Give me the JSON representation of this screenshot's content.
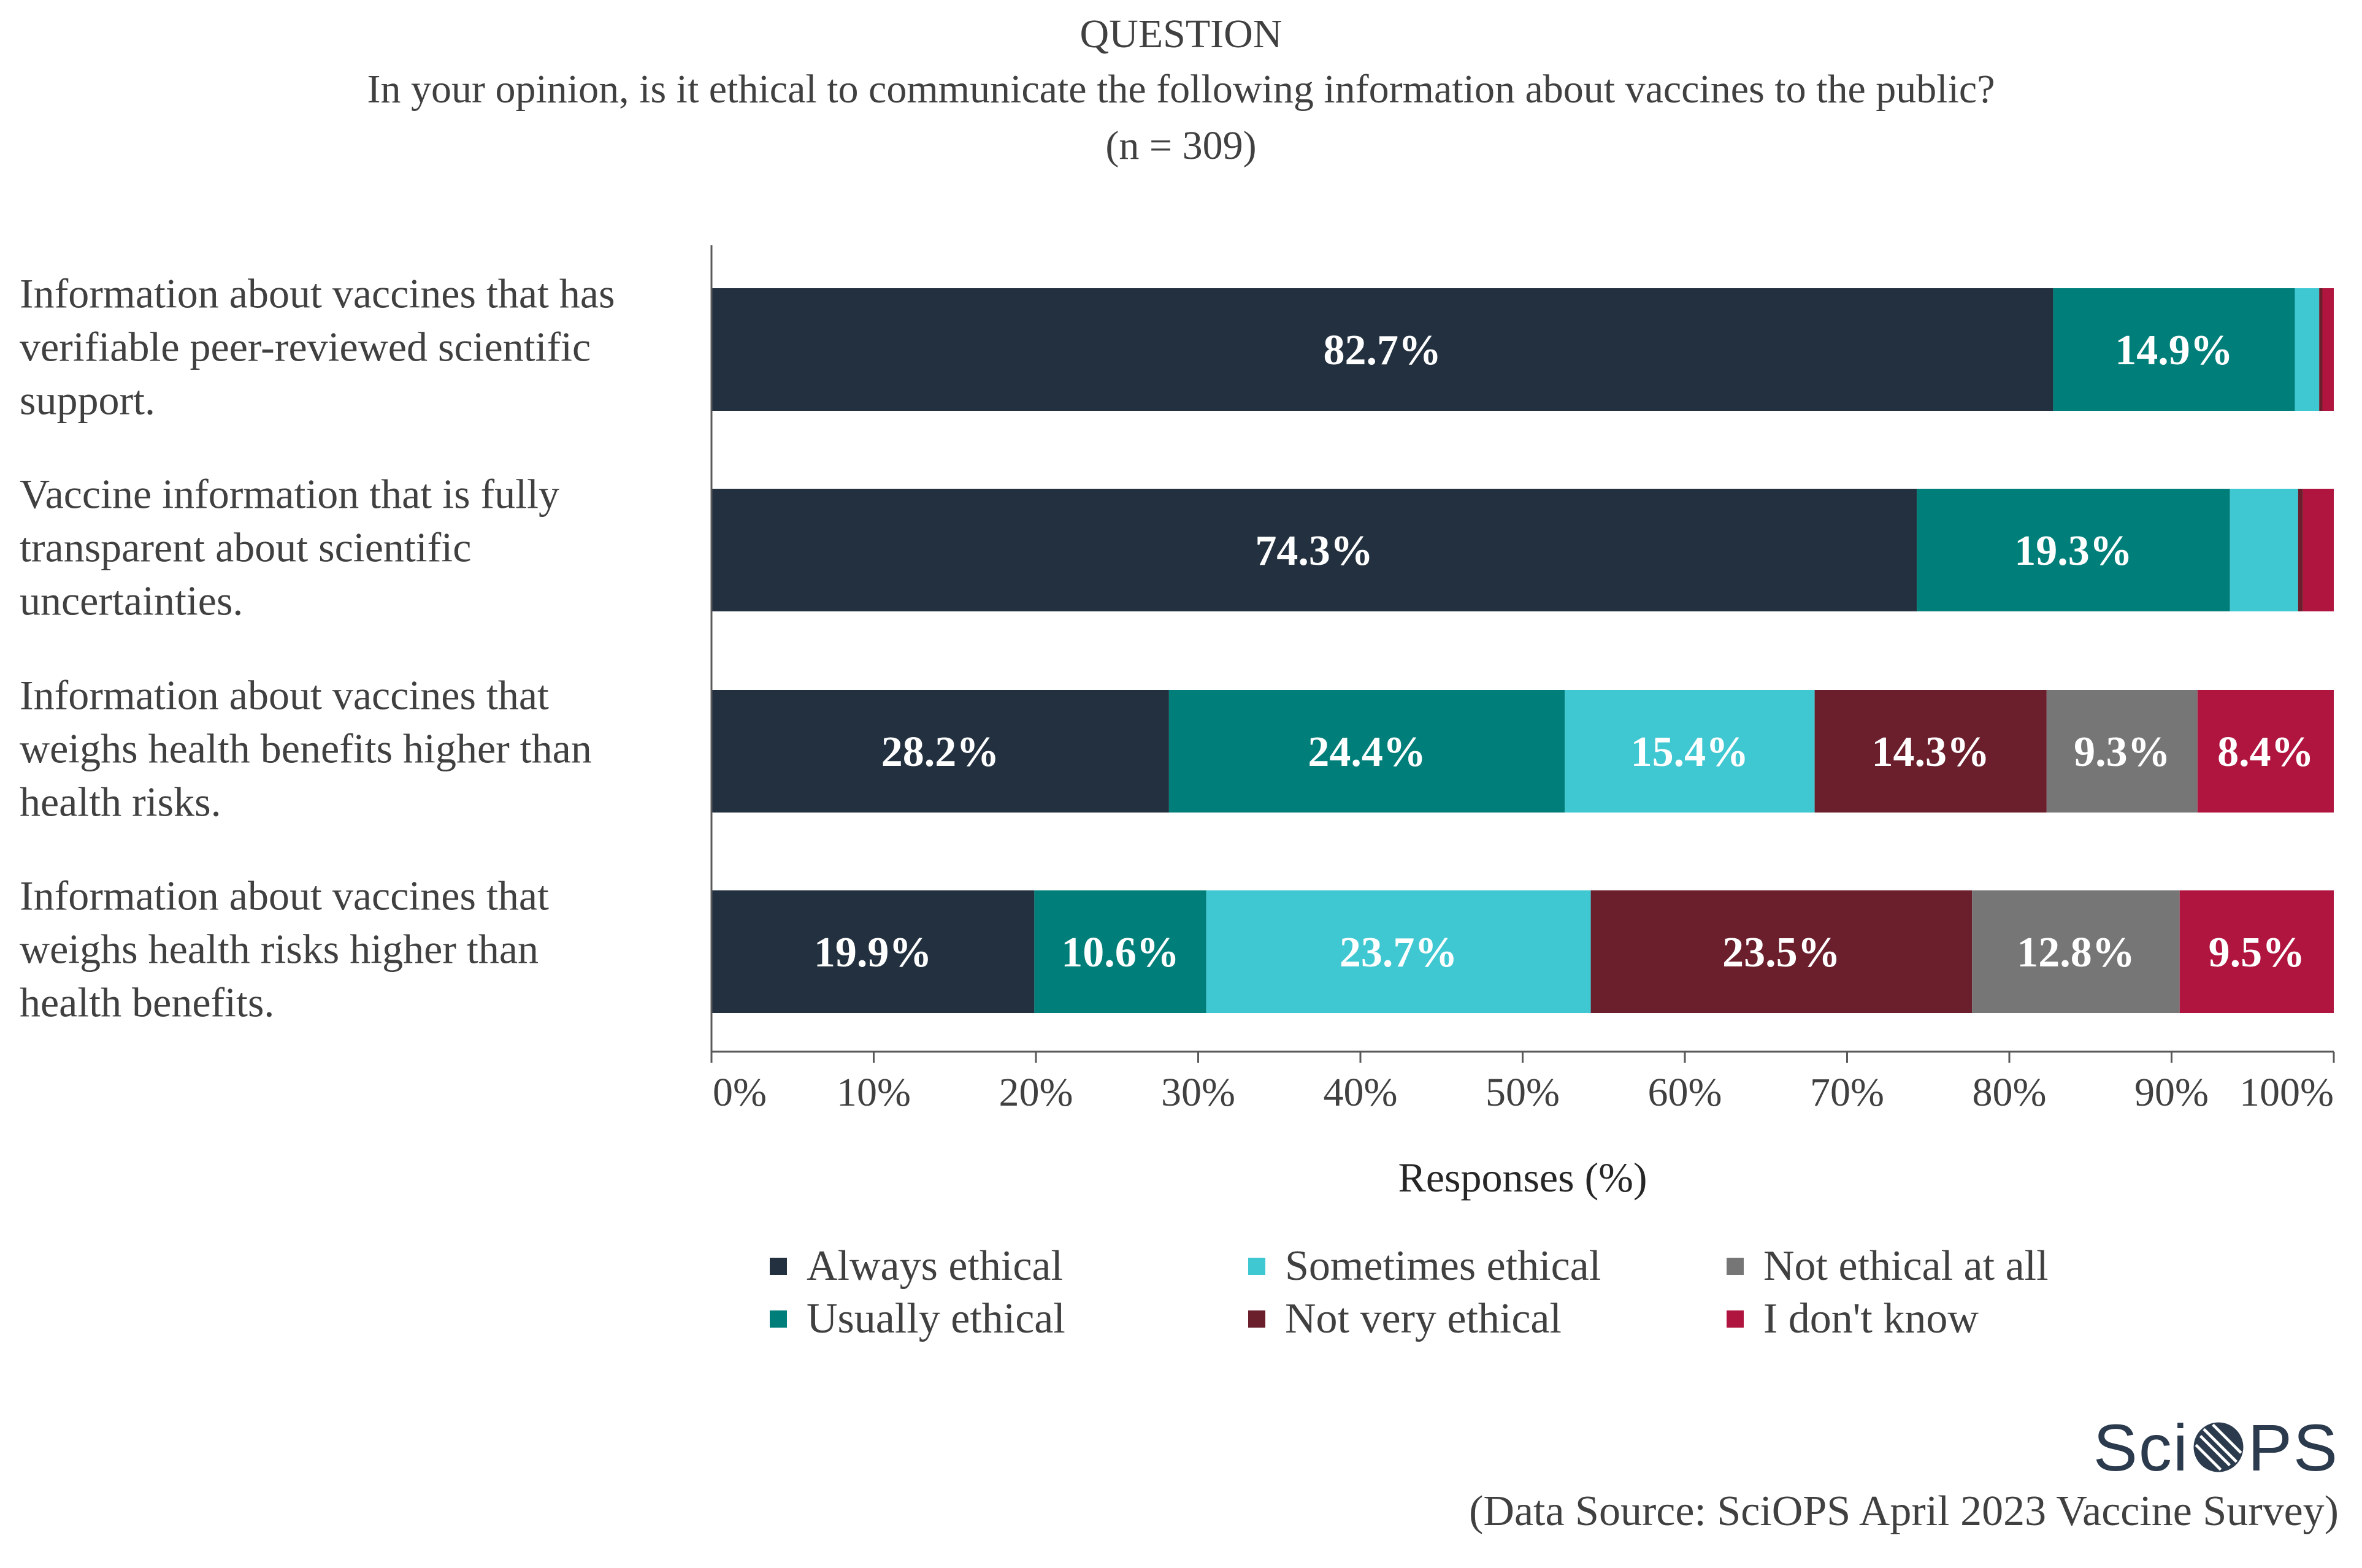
{
  "header": {
    "label": "QUESTION",
    "question": "In your opinion, is it ethical to communicate the following information about vaccines to the public?",
    "n_text": "(n = 309)"
  },
  "colors": {
    "Always ethical": "#22303f",
    "Usually ethical": "#007f7a",
    "Sometimes ethical": "#40c8d2",
    "Not very ethical": "#6b1f2c",
    "Not ethical at all": "#767676",
    "I don't know": "#b0153f"
  },
  "chart_data": {
    "type": "bar",
    "orientation": "horizontal",
    "stacked": true,
    "title": "QUESTION In your opinion, is it ethical to communicate the following information about vaccines to the public? (n = 309)",
    "categories": [
      [
        "Information about vaccines that has",
        "verifiable peer-reviewed scientific",
        "support."
      ],
      [
        "Vaccine information that is fully",
        "transparent about scientific",
        "uncertainties."
      ],
      [
        "Information about vaccines that",
        "weighs health benefits higher than",
        "health risks."
      ],
      [
        "Information about vaccines that",
        "weighs health risks higher than",
        "health benefits."
      ]
    ],
    "series": [
      {
        "name": "Always ethical",
        "values": [
          82.7,
          74.3,
          28.2,
          19.9
        ],
        "labels": [
          "82.7%",
          "74.3%",
          "28.2%",
          "19.9%"
        ]
      },
      {
        "name": "Usually ethical",
        "values": [
          14.9,
          19.3,
          24.4,
          10.6
        ],
        "labels": [
          "14.9%",
          "19.3%",
          "24.4%",
          "10.6%"
        ]
      },
      {
        "name": "Sometimes ethical",
        "values": [
          1.5,
          4.2,
          15.4,
          23.7
        ],
        "labels": [
          "",
          "",
          "15.4%",
          "23.7%"
        ]
      },
      {
        "name": "Not very ethical",
        "values": [
          0.2,
          0.3,
          14.3,
          23.5
        ],
        "labels": [
          "",
          "",
          "14.3%",
          "23.5%"
        ]
      },
      {
        "name": "Not ethical at all",
        "values": [
          0.0,
          0.0,
          9.3,
          12.8
        ],
        "labels": [
          "",
          "",
          "9.3%",
          "12.8%"
        ]
      },
      {
        "name": "I don't know",
        "values": [
          0.7,
          1.9,
          8.4,
          9.5
        ],
        "labels": [
          "",
          "",
          "8.4%",
          "9.5%"
        ]
      }
    ],
    "xlim": [
      0,
      100
    ],
    "xticks": [
      "0%",
      "10%",
      "20%",
      "30%",
      "40%",
      "50%",
      "60%",
      "70%",
      "80%",
      "90%",
      "100%"
    ],
    "xlabel": "Responses (%)",
    "ylabel": "",
    "legend_position": "bottom",
    "grid": false
  },
  "legend": {
    "items": [
      "Always ethical",
      "Usually ethical",
      "Sometimes ethical",
      "Not very ethical",
      "Not ethical at all",
      "I don't know"
    ]
  },
  "logo": {
    "text_left": "Sci",
    "text_right": "PS"
  },
  "source": "(Data Source: SciOPS April 2023 Vaccine Survey)"
}
